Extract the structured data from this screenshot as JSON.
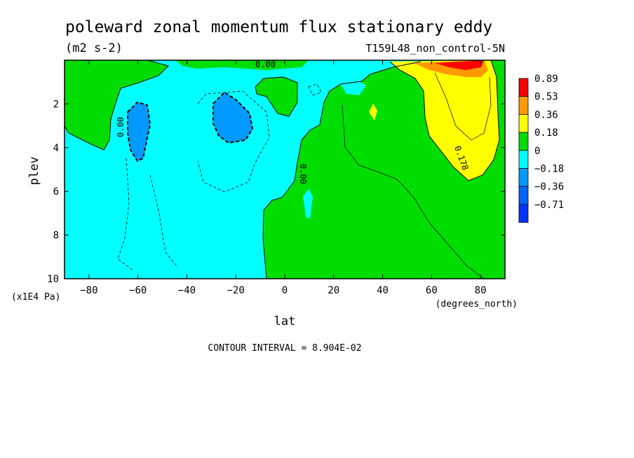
{
  "chart_data": {
    "type": "contour",
    "title": "poleward zonal momentum flux stationary eddy",
    "units": "(m2 s-2)",
    "run_label": "T159L48_non_control-5N",
    "xlabel": "lat",
    "x_units": "(degrees_north)",
    "ylabel": "plev",
    "y_units": "(x1E4 Pa)",
    "xlim": [
      -90,
      90
    ],
    "ylim": [
      10,
      0
    ],
    "x_ticks": [
      -80,
      -60,
      -40,
      -20,
      0,
      20,
      40,
      60,
      80
    ],
    "y_ticks": [
      2,
      4,
      6,
      8,
      10
    ],
    "contour_interval": "CONTOUR INTERVAL = 8.904E-02",
    "levels": [
      "0.89",
      "0.53",
      "0.36",
      "0.18",
      "0",
      "−0.18",
      "−0.36",
      "−0.71"
    ],
    "contour_labels": [
      "0.00",
      "0.00",
      "0.00",
      "0.178"
    ],
    "colors": {
      "c089": "#ff0000",
      "c053": "#ff9900",
      "c036": "#ffff00",
      "c018": "#00dd00",
      "c000": "#00ffff",
      "cm018": "#0099ff",
      "cm036": "#0066ff",
      "cm071": "#0033ff"
    }
  }
}
